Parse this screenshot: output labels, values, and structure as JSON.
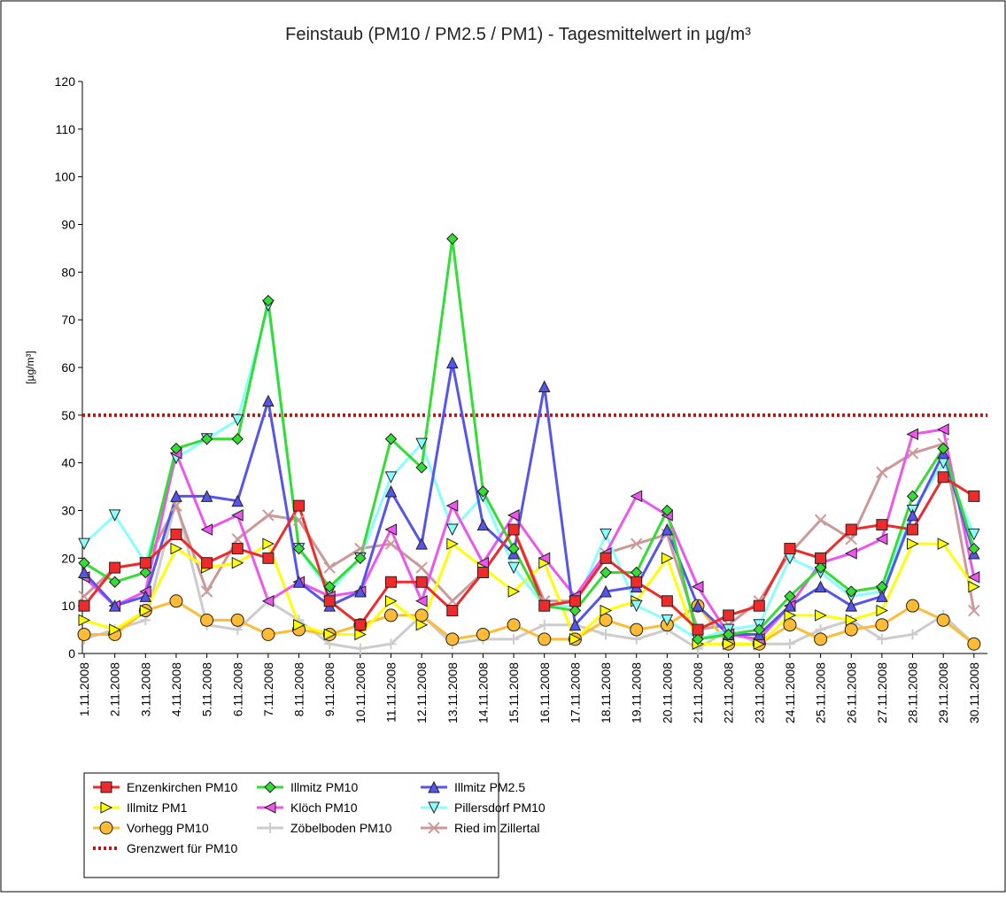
{
  "chart_data": {
    "type": "line",
    "title": "Feinstaub (PM10 / PM2.5 / PM1) -  Tagesmittelwert in µg/m³",
    "y_label": "[µg/m³]",
    "categories": [
      "1.11.2008",
      "2.11.2008",
      "3.11.2008",
      "4.11.2008",
      "5.11.2008",
      "6.11.2008",
      "7.11.2008",
      "8.11.2008",
      "9.11.2008",
      "10.11.2008",
      "11.11.2008",
      "12.11.2008",
      "13.11.2008",
      "14.11.2008",
      "15.11.2008",
      "16.11.2008",
      "17.11.2008",
      "18.11.2008",
      "19.11.2008",
      "20.11.2008",
      "21.11.2008",
      "22.11.2008",
      "23.11.2008",
      "24.11.2008",
      "25.11.2008",
      "26.11.2008",
      "27.11.2008",
      "28.11.2008",
      "29.11.2008",
      "30.11.2008"
    ],
    "ylim": [
      0,
      120
    ],
    "yticks": [
      0,
      10,
      20,
      30,
      40,
      50,
      60,
      70,
      80,
      90,
      100,
      110,
      120
    ],
    "series": [
      {
        "name": "Enzenkirchen PM10",
        "color": "#ee2a2a",
        "marker": "square",
        "values": [
          10,
          18,
          19,
          25,
          19,
          22,
          20,
          31,
          11,
          6,
          15,
          15,
          9,
          17,
          26,
          10,
          11,
          20,
          15,
          11,
          5,
          8,
          10,
          22,
          20,
          26,
          27,
          26,
          37,
          33
        ]
      },
      {
        "name": "Illmitz PM10",
        "color": "#33dd33",
        "marker": "diamond",
        "values": [
          19,
          15,
          17,
          43,
          45,
          45,
          74,
          22,
          14,
          20,
          45,
          39,
          87,
          34,
          22,
          10,
          9,
          17,
          17,
          30,
          3,
          4,
          5,
          12,
          18,
          13,
          14,
          33,
          43,
          22
        ]
      },
      {
        "name": "Illmitz PM2.5",
        "color": "#5555ee",
        "marker": "triangle-up",
        "values": [
          17,
          10,
          12,
          33,
          33,
          32,
          53,
          15,
          10,
          13,
          34,
          23,
          61,
          27,
          21,
          56,
          6,
          13,
          14,
          26,
          10,
          4,
          4,
          10,
          14,
          10,
          12,
          29,
          42,
          21
        ]
      },
      {
        "name": "Illmitz PM1",
        "color": "#ffff00",
        "marker": "triangle-right",
        "values": [
          7,
          5,
          9,
          22,
          18,
          19,
          23,
          6,
          4,
          4,
          11,
          6,
          23,
          18,
          13,
          19,
          3,
          9,
          11,
          20,
          2,
          2,
          2,
          8,
          8,
          7,
          9,
          23,
          23,
          14
        ]
      },
      {
        "name": "Klöch PM10",
        "color": "#ee55ee",
        "marker": "triangle-left",
        "values": [
          16,
          10,
          13,
          42,
          26,
          29,
          11,
          15,
          12,
          13,
          26,
          11,
          31,
          19,
          29,
          20,
          12,
          21,
          33,
          29,
          14,
          4,
          3,
          10,
          19,
          21,
          24,
          46,
          47,
          16
        ]
      },
      {
        "name": "Pillersdorf PM10",
        "color": "#88ffff",
        "marker": "triangle-down",
        "values": [
          23,
          29,
          19,
          41,
          45,
          49,
          73,
          22,
          13,
          20,
          37,
          44,
          26,
          33,
          18,
          10,
          10,
          25,
          10,
          7,
          3,
          5,
          6,
          20,
          17,
          12,
          13,
          30,
          40,
          25
        ]
      },
      {
        "name": "Vorhegg PM10",
        "color": "#ffbb33",
        "marker": "circle",
        "values": [
          4,
          4,
          9,
          11,
          7,
          7,
          4,
          5,
          4,
          6,
          8,
          8,
          3,
          4,
          6,
          3,
          3,
          7,
          5,
          6,
          10,
          2,
          2,
          6,
          3,
          5,
          6,
          10,
          7,
          2
        ]
      },
      {
        "name": "Zöbelboden PM10",
        "color": "#cccccc",
        "marker": "plus",
        "values": [
          3,
          5,
          7,
          32,
          6,
          5,
          11,
          7,
          2,
          1,
          2,
          8,
          2,
          3,
          3,
          6,
          6,
          4,
          3,
          5,
          1,
          5,
          2,
          2,
          5,
          7,
          3,
          4,
          8,
          2
        ]
      },
      {
        "name": "Ried im Zillertal",
        "color": "#cc9999",
        "marker": "cross",
        "values": [
          12,
          18,
          19,
          31,
          13,
          24,
          29,
          28,
          18,
          22,
          23,
          18,
          11,
          17,
          26,
          11,
          11,
          21,
          23,
          25,
          5,
          6,
          11,
          21,
          28,
          24,
          38,
          42,
          44,
          9
        ]
      }
    ],
    "threshold": {
      "name": "Grenzwert für PM10",
      "value": 50,
      "color": "#ee0000"
    }
  }
}
